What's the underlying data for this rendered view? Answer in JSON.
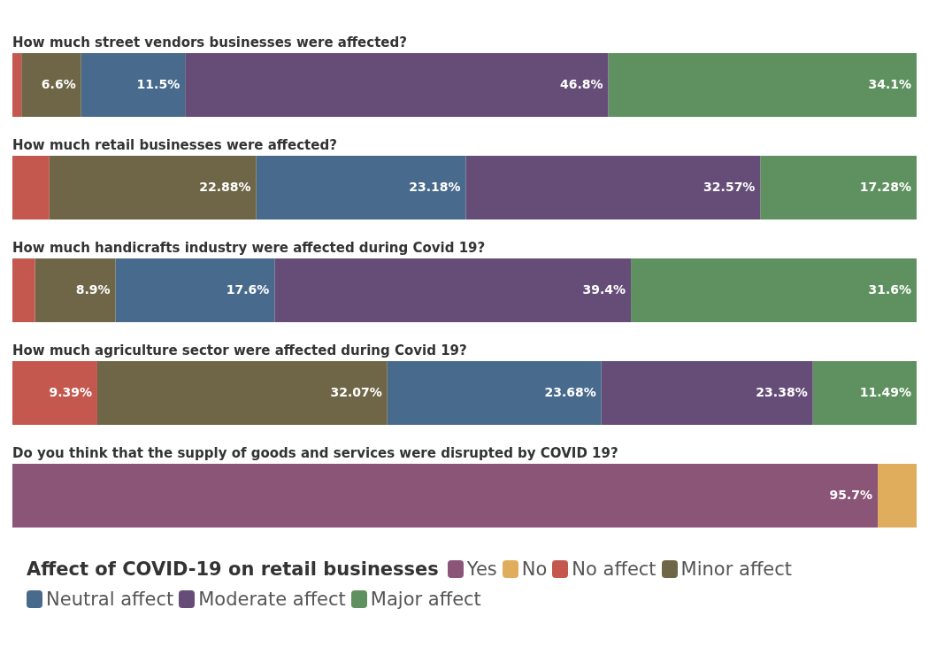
{
  "chart_data": {
    "type": "bar",
    "orientation": "horizontal",
    "stacked": true,
    "categories": [
      "How much street vendors businesses were affected?",
      "How much retail businesses were affected?",
      "How much handicrafts industry were affected during Covid 19?",
      "How much agriculture sector were affected during Covid 19?",
      "Do you think that the supply of goods and services were disrupted by COVID 19?"
    ],
    "xlim": [
      0,
      100
    ],
    "legend": "bottom",
    "legend_title": "Affect of COVID-19 on retail businesses",
    "series": [
      {
        "name": "Yes",
        "color": "#8b5577",
        "values": [
          null,
          null,
          null,
          null,
          95.7
        ],
        "value_labels": [
          null,
          null,
          null,
          null,
          "95.7%"
        ]
      },
      {
        "name": "No",
        "color": "#e0ad5c",
        "values": [
          null,
          null,
          null,
          null,
          4.3
        ],
        "value_labels": [
          null,
          null,
          null,
          null,
          null
        ]
      },
      {
        "name": "No affect",
        "color": "#c4584f",
        "values": [
          1.0,
          4.09,
          2.5,
          9.39,
          null
        ],
        "value_labels": [
          null,
          null,
          null,
          "9.39%",
          null
        ]
      },
      {
        "name": "Minor affect",
        "color": "#6e6646",
        "values": [
          6.6,
          22.88,
          8.9,
          32.07,
          null
        ],
        "value_labels": [
          "6.6%",
          "22.88%",
          "8.9%",
          "32.07%",
          null
        ]
      },
      {
        "name": "Neutral affect",
        "color": "#486a8c",
        "values": [
          11.5,
          23.18,
          17.6,
          23.68,
          null
        ],
        "value_labels": [
          "11.5%",
          "23.18%",
          "17.6%",
          "23.68%",
          null
        ]
      },
      {
        "name": "Moderate affect",
        "color": "#654d78",
        "values": [
          46.8,
          32.57,
          39.4,
          23.38,
          null
        ],
        "value_labels": [
          "46.8%",
          "32.57%",
          "39.4%",
          "23.38%",
          null
        ]
      },
      {
        "name": "Major affect",
        "color": "#5f9160",
        "values": [
          34.1,
          17.28,
          31.6,
          11.49,
          null
        ],
        "value_labels": [
          "34.1%",
          "17.28%",
          "31.6%",
          "11.49%",
          null
        ]
      }
    ]
  }
}
